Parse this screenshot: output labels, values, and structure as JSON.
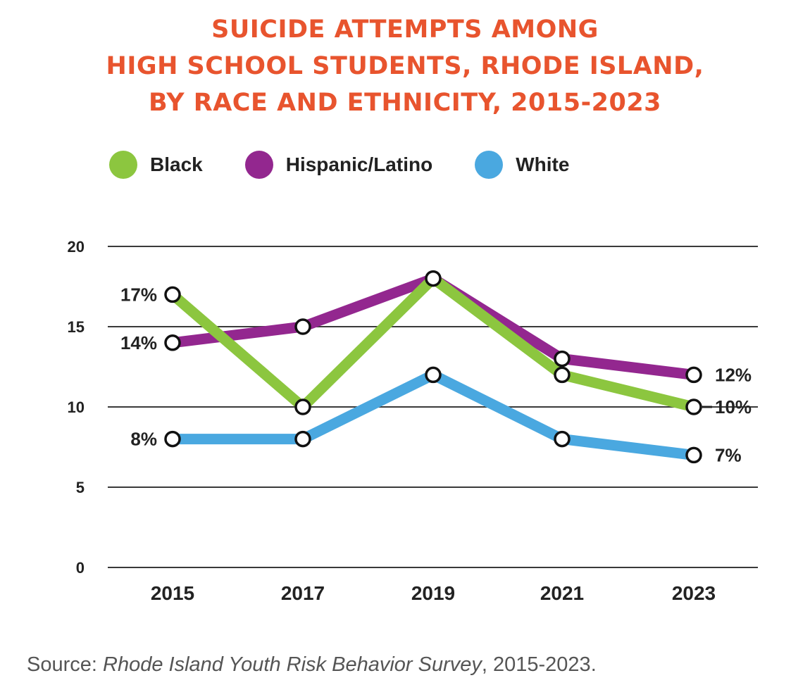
{
  "chart_data": {
    "type": "line",
    "title_lines": [
      "SUICIDE ATTEMPTS AMONG",
      "HIGH SCHOOL STUDENTS, RHODE ISLAND,",
      "BY RACE AND ETHNICITY, 2015-2023"
    ],
    "categories": [
      "2015",
      "2017",
      "2019",
      "2021",
      "2023"
    ],
    "ylim": [
      0,
      20
    ],
    "yticks": [
      "0",
      "5",
      "10",
      "15",
      "20"
    ],
    "grid": true,
    "legend_position": "top-left",
    "series": [
      {
        "name": "Black",
        "color": "#8cc63f",
        "values": [
          17,
          10,
          18,
          12,
          10
        ],
        "labels": [
          "17%",
          "",
          "",
          "",
          "10%"
        ]
      },
      {
        "name": "Hispanic/Latino",
        "color": "#93278f",
        "values": [
          14,
          15,
          18,
          13,
          12
        ],
        "labels": [
          "14%",
          "",
          "",
          "",
          "12%"
        ]
      },
      {
        "name": "White",
        "color": "#4aa8e0",
        "values": [
          8,
          8,
          12,
          8,
          7
        ],
        "labels": [
          "8%",
          "",
          "",
          "",
          "7%"
        ]
      }
    ]
  },
  "source": {
    "prefix": "Source: ",
    "title": "Rhode Island Youth Risk Behavior Survey",
    "suffix": ", 2015-2023."
  }
}
